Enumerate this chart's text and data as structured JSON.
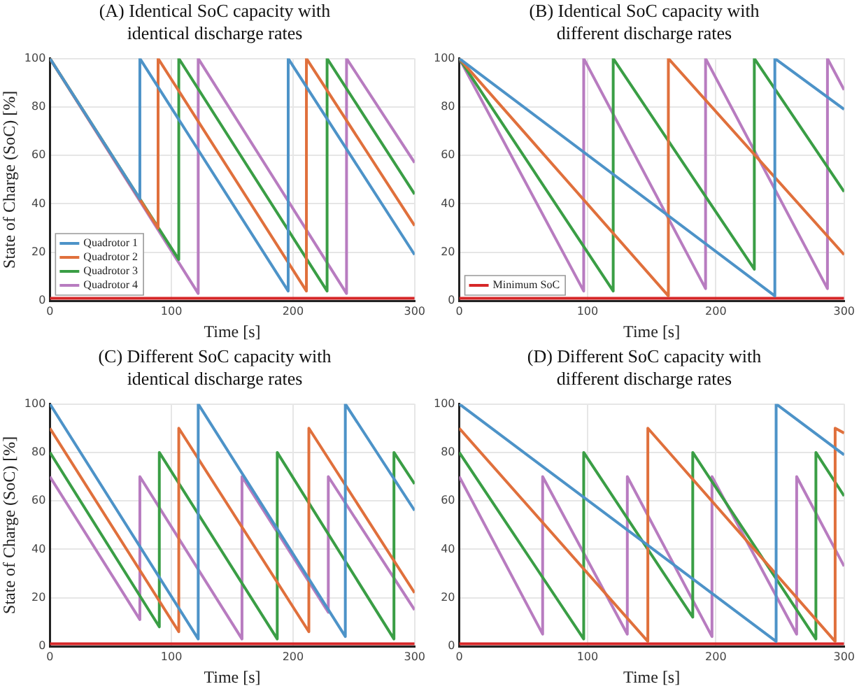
{
  "chart_data": [
    {
      "type": "line",
      "title": "(A) Identical SoC capacity with\nidentical discharge rates",
      "xlabel": "Time [s]",
      "ylabel": "State of Charge (SoC) [%]",
      "xlim": [
        0,
        300
      ],
      "xticks": [
        0,
        100,
        200,
        300
      ],
      "ylim": [
        0,
        100
      ],
      "yticks": [
        0,
        20,
        40,
        60,
        80,
        100
      ],
      "grid": true,
      "legend": "bottom left",
      "series": [
        {
          "name": "Quadrotor 1",
          "color": "#4d93c8",
          "x": [
            0,
            74,
            74,
            196,
            196,
            300
          ],
          "values": [
            100,
            42,
            100,
            4,
            100,
            19
          ]
        },
        {
          "name": "Quadrotor 2",
          "color": "#e0703c",
          "x": [
            0,
            89,
            89,
            211,
            211,
            300
          ],
          "values": [
            100,
            30,
            100,
            4,
            100,
            31
          ]
        },
        {
          "name": "Quadrotor 3",
          "color": "#3a9e45",
          "x": [
            0,
            106,
            106,
            228,
            228,
            300
          ],
          "values": [
            100,
            17,
            100,
            4,
            100,
            44
          ]
        },
        {
          "name": "Quadrotor 4",
          "color": "#b87cc0",
          "x": [
            0,
            122,
            122,
            244,
            244,
            300
          ],
          "values": [
            100,
            3,
            100,
            3,
            100,
            57
          ]
        },
        {
          "color": "#d62728",
          "x": [
            0,
            300
          ],
          "values": [
            1,
            1
          ]
        }
      ]
    },
    {
      "type": "line",
      "title": "(B) Identical SoC capacity with\ndifferent discharge rates",
      "xlabel": "Time [s]",
      "xlim": [
        0,
        300
      ],
      "xticks": [
        0,
        100,
        200,
        300
      ],
      "ylim": [
        0,
        100
      ],
      "yticks": [
        0,
        20,
        40,
        60,
        80,
        100
      ],
      "grid": true,
      "legend": "bottom left",
      "series": [
        {
          "color": "#4d93c8",
          "x": [
            0,
            246,
            246,
            300
          ],
          "values": [
            100,
            2,
            100,
            79
          ]
        },
        {
          "color": "#e0703c",
          "x": [
            0,
            163,
            163,
            300
          ],
          "values": [
            100,
            2,
            100,
            19
          ]
        },
        {
          "color": "#3a9e45",
          "x": [
            0,
            120,
            120,
            230,
            230,
            300
          ],
          "values": [
            100,
            4,
            100,
            13,
            100,
            45
          ]
        },
        {
          "color": "#b87cc0",
          "x": [
            0,
            97,
            97,
            192,
            192,
            287,
            287,
            300
          ],
          "values": [
            100,
            4,
            100,
            5,
            100,
            5,
            100,
            87
          ]
        },
        {
          "name": "Minimum SoC",
          "color": "#d62728",
          "x": [
            0,
            300
          ],
          "values": [
            1,
            1
          ]
        }
      ]
    },
    {
      "type": "line",
      "title": "(C) Different SoC capacity with\nidentical discharge rates",
      "xlabel": "Time [s]",
      "ylabel": "State of Charge (SoC) [%]",
      "xlim": [
        0,
        300
      ],
      "xticks": [
        0,
        100,
        200,
        300
      ],
      "ylim": [
        0,
        100
      ],
      "yticks": [
        0,
        20,
        40,
        60,
        80,
        100
      ],
      "grid": true,
      "series": [
        {
          "color": "#4d93c8",
          "x": [
            0,
            122,
            122,
            243,
            243,
            300
          ],
          "values": [
            100,
            3,
            100,
            4,
            100,
            56
          ]
        },
        {
          "color": "#e0703c",
          "x": [
            0,
            106,
            106,
            213,
            213,
            300
          ],
          "values": [
            90,
            6,
            90,
            6,
            90,
            22
          ]
        },
        {
          "color": "#3a9e45",
          "x": [
            0,
            90,
            90,
            187,
            187,
            283,
            283,
            300
          ],
          "values": [
            80,
            8,
            80,
            3,
            80,
            3,
            80,
            67
          ]
        },
        {
          "color": "#b87cc0",
          "x": [
            0,
            74,
            74,
            158,
            158,
            229,
            229,
            300
          ],
          "values": [
            70,
            11,
            70,
            3,
            70,
            14,
            70,
            15
          ]
        },
        {
          "color": "#d62728",
          "x": [
            0,
            300
          ],
          "values": [
            1,
            1
          ]
        }
      ]
    },
    {
      "type": "line",
      "title": "(D) Different SoC capacity with\ndifferent discharge rates",
      "xlabel": "Time [s]",
      "xlim": [
        0,
        300
      ],
      "xticks": [
        0,
        100,
        200,
        300
      ],
      "ylim": [
        0,
        100
      ],
      "yticks": [
        0,
        20,
        40,
        60,
        80,
        100
      ],
      "grid": true,
      "series": [
        {
          "color": "#4d93c8",
          "x": [
            0,
            247,
            247,
            300
          ],
          "values": [
            100,
            2,
            100,
            79
          ]
        },
        {
          "color": "#e0703c",
          "x": [
            0,
            147,
            147,
            293,
            293,
            300
          ],
          "values": [
            90,
            2,
            90,
            2,
            90,
            88
          ]
        },
        {
          "color": "#3a9e45",
          "x": [
            0,
            97,
            97,
            182,
            182,
            278,
            278,
            300
          ],
          "values": [
            80,
            3,
            80,
            12,
            80,
            3,
            80,
            62
          ]
        },
        {
          "color": "#b87cc0",
          "x": [
            0,
            65,
            65,
            131,
            131,
            197,
            197,
            263,
            263,
            300
          ],
          "values": [
            70,
            5,
            70,
            5,
            70,
            4,
            70,
            5,
            70,
            33
          ]
        },
        {
          "color": "#d62728",
          "x": [
            0,
            300
          ],
          "values": [
            1,
            1
          ]
        }
      ]
    }
  ]
}
